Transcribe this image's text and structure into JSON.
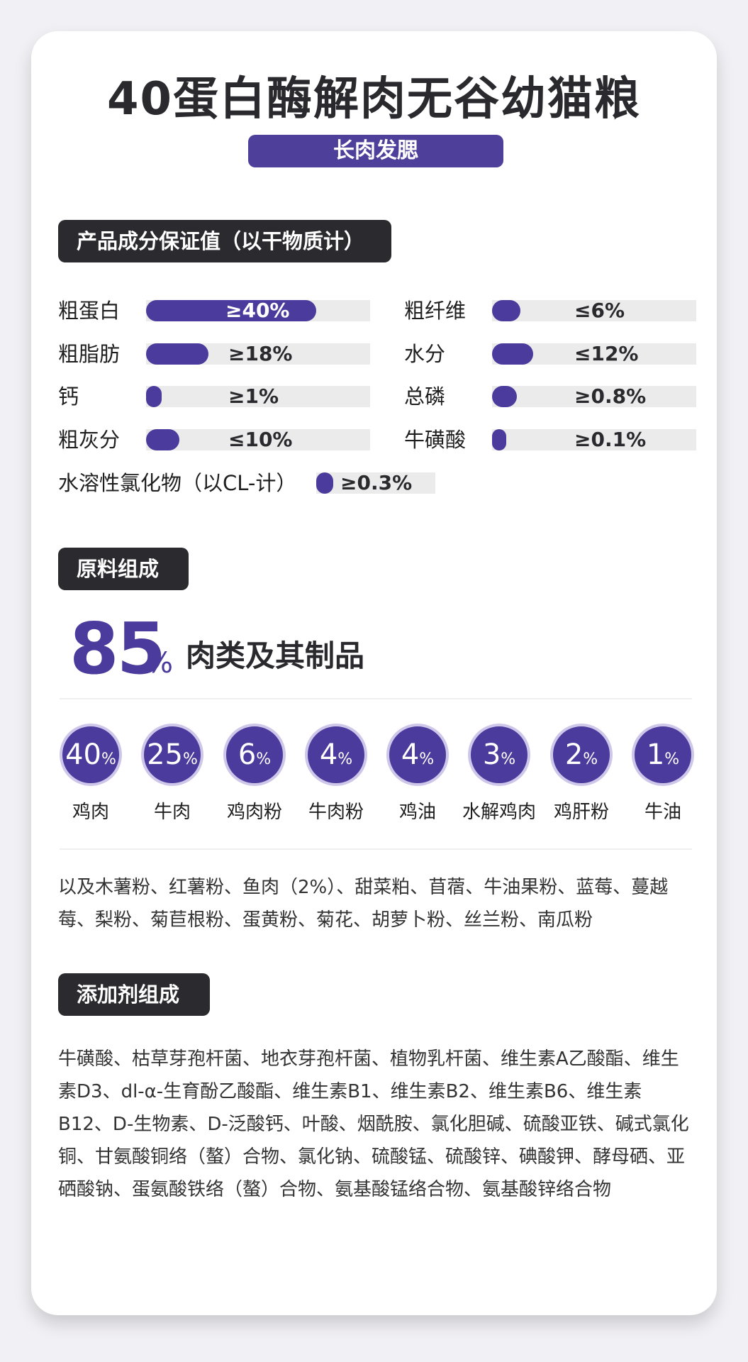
{
  "header": {
    "title": "40蛋白酶解肉无谷幼猫粮",
    "tag": "长肉发腮"
  },
  "guarantee": {
    "heading": "产品成分保证值（以干物质计）",
    "items": [
      {
        "label": "粗蛋白",
        "value": "≥40%",
        "fill": 0.76
      },
      {
        "label": "粗纤维",
        "value": "≤6%",
        "fill": 0.14
      },
      {
        "label": "粗脂肪",
        "value": "≥18%",
        "fill": 0.28
      },
      {
        "label": "水分",
        "value": "≤12%",
        "fill": 0.2
      },
      {
        "label": "钙",
        "value": "≥1%",
        "fill": 0.07
      },
      {
        "label": "总磷",
        "value": "≥0.8%",
        "fill": 0.12
      },
      {
        "label": "粗灰分",
        "value": "≤10%",
        "fill": 0.15
      },
      {
        "label": "牛磺酸",
        "value": "≥0.1%",
        "fill": 0.07
      },
      {
        "label": "水溶性氯化物（以CL-计）",
        "value": "≥0.3%",
        "fill": 0.14
      }
    ]
  },
  "raw": {
    "heading": "原料组成",
    "meat_pct": "85",
    "meat_unit": "%",
    "meat_text": "肉类及其制品",
    "unit": "%",
    "ingredients": [
      {
        "pct": "40",
        "name": "鸡肉"
      },
      {
        "pct": "25",
        "name": "牛肉"
      },
      {
        "pct": "6",
        "name": "鸡肉粉"
      },
      {
        "pct": "4",
        "name": "牛肉粉"
      },
      {
        "pct": "4",
        "name": "鸡油"
      },
      {
        "pct": "3",
        "name": "水解鸡肉"
      },
      {
        "pct": "2",
        "name": "鸡肝粉"
      },
      {
        "pct": "1",
        "name": "牛油"
      }
    ],
    "others": "以及木薯粉、红薯粉、鱼肉（2%）、甜菜粕、苜蓿、牛油果粉、蓝莓、蔓越莓、梨粉、菊苣根粉、蛋黄粉、菊花、胡萝卜粉、丝兰粉、南瓜粉"
  },
  "additives": {
    "heading": "添加剂组成",
    "text": "牛磺酸、枯草芽孢杆菌、地衣芽孢杆菌、植物乳杆菌、维生素A乙酸酯、维生素D3、dl-α-生育酚乙酸酯、维生素B1、维生素B2、维生素B6、维生素B12、D-生物素、D-泛酸钙、叶酸、烟酰胺、氯化胆碱、硫酸亚铁、碱式氯化铜、甘氨酸铜络（螯）合物、氯化钠、硫酸锰、硫酸锌、碘酸钾、酵母硒、亚硒酸钠、蛋氨酸铁络（螯）合物、氨基酸锰络合物、氨基酸锌络合物"
  }
}
